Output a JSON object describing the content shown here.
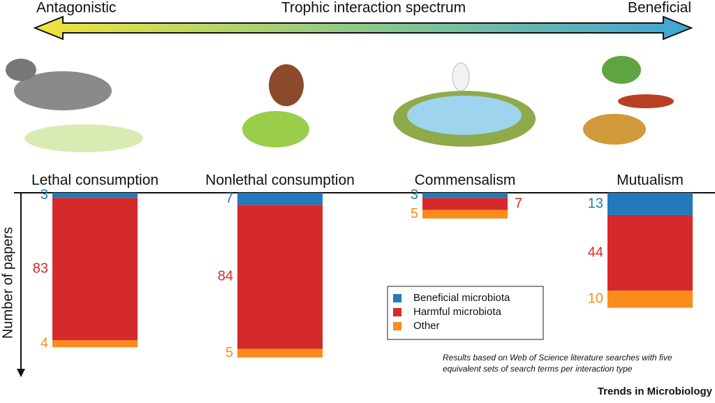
{
  "chart_data": {
    "type": "bar",
    "stacked": true,
    "direction": "down",
    "spectrum": {
      "label": "Trophic interaction spectrum",
      "left": "Antagonistic",
      "right": "Beneficial"
    },
    "ylabel": "Number of papers",
    "categories": [
      "Lethal consumption",
      "Nonlethal consumption",
      "Commensalism",
      "Mutualism"
    ],
    "series": [
      {
        "name": "Beneficial microbiota",
        "color": "#2379b9",
        "values": [
          3,
          7,
          3,
          13
        ]
      },
      {
        "name": "Harmful microbiota",
        "color": "#d52a2b",
        "values": [
          83,
          84,
          7,
          44
        ]
      },
      {
        "name": "Other",
        "color": "#fb8c1c",
        "values": [
          4,
          5,
          5,
          10
        ]
      }
    ],
    "ylim": [
      0,
      105
    ],
    "note": "Results based on Web of Science literature searches with five equivalent sets of search terms per interaction type",
    "source": "Trends in Microbiology"
  }
}
